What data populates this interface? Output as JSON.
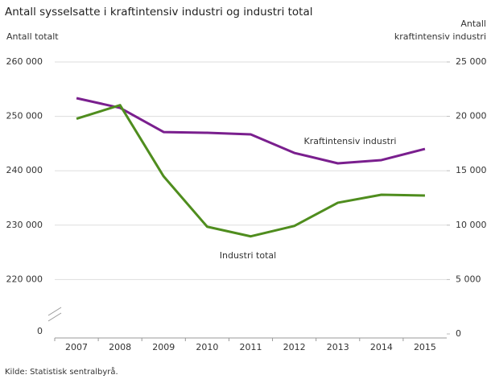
{
  "chart_data": {
    "type": "line",
    "title": "Antall sysselsatte i kraftintensiv industri og industri total",
    "ylabel": "Antall totalt",
    "y2label": [
      "Antall",
      "kraftintensiv industri"
    ],
    "source": "Kilde: Statistisk sentralbyrå.",
    "categories": [
      "2007",
      "2008",
      "2009",
      "2010",
      "2011",
      "2012",
      "2013",
      "2014",
      "2015"
    ],
    "series": [
      {
        "name": "Kraftintensiv industri",
        "color": "#7a1f8e",
        "axis": "y2",
        "values": [
          21670,
          20780,
          18560,
          18490,
          18340,
          16640,
          15680,
          15980,
          17010
        ]
      },
      {
        "name": "Industri total",
        "color": "#4f8d1e",
        "values": [
          249560,
          252060,
          238970,
          229710,
          227940,
          229850,
          234120,
          235590,
          235440
        ]
      }
    ],
    "ylim": [
      210000,
      260000
    ],
    "yticks": [
      {
        "value": 220000,
        "label": "220 000"
      },
      {
        "value": 230000,
        "label": "230 000"
      },
      {
        "value": 240000,
        "label": "240 000"
      },
      {
        "value": 250000,
        "label": "250 000"
      },
      {
        "value": 260000,
        "label": "260 000"
      }
    ],
    "y_break_label": "0",
    "y2lim": [
      0,
      25000
    ],
    "y2ticks": [
      0,
      {
        "value": 5000,
        "label": "5 000"
      },
      {
        "value": 10000,
        "label": "10 000"
      },
      {
        "value": 15000,
        "label": "15 000"
      },
      {
        "value": 20000,
        "label": "20 000"
      },
      {
        "value": 25000,
        "label": "25 000"
      }
    ],
    "grid": true
  }
}
